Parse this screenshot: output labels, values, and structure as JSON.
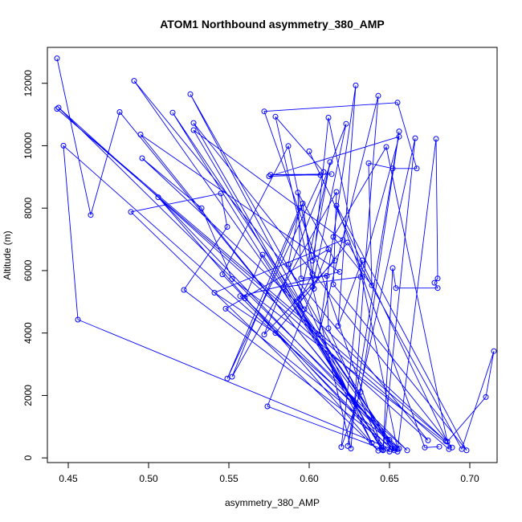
{
  "chart_data": {
    "type": "line",
    "title": "ATOM1 Northbound asymmetry_380_AMP",
    "xlabel": "asymmetry_380_AMP",
    "ylabel": "Altitude (m)",
    "xlim": [
      0.437,
      0.717
    ],
    "ylim": [
      -150,
      13150
    ],
    "xticks": [
      0.45,
      0.5,
      0.55,
      0.6,
      0.65,
      0.7
    ],
    "xtick_labels": [
      "0.45",
      "0.50",
      "0.55",
      "0.60",
      "0.65",
      "0.70"
    ],
    "yticks": [
      0,
      2000,
      4000,
      6000,
      8000,
      10000,
      12000
    ],
    "ytick_labels": [
      "0",
      "2000",
      "4000",
      "6000",
      "8000",
      "10000",
      "12000"
    ],
    "grid": false,
    "markers": "open-circle",
    "series": [
      {
        "color": "#0000ff",
        "points": [
          [
            0.443,
            12800
          ],
          [
            0.464,
            7780
          ],
          [
            0.482,
            11080
          ],
          [
            0.653,
            300
          ],
          [
            0.491,
            12080
          ],
          [
            0.674,
            560
          ],
          [
            0.444,
            11220
          ],
          [
            0.661,
            240
          ],
          [
            0.447,
            10000
          ],
          [
            0.456,
            4430
          ],
          [
            0.653,
            240
          ],
          [
            0.495,
            10360
          ],
          [
            0.619,
            5960
          ],
          [
            0.557,
            5180
          ],
          [
            0.651,
            280
          ],
          [
            0.526,
            11650
          ],
          [
            0.597,
            4760
          ],
          [
            0.515,
            11060
          ],
          [
            0.646,
            240
          ],
          [
            0.572,
            11100
          ],
          [
            0.655,
            11380
          ],
          [
            0.667,
            9270
          ],
          [
            0.652,
            9270
          ],
          [
            0.637,
            9440
          ],
          [
            0.639,
            5530
          ],
          [
            0.615,
            7080
          ],
          [
            0.648,
            9960
          ],
          [
            0.687,
            280
          ],
          [
            0.443,
            11180
          ],
          [
            0.685,
            540
          ],
          [
            0.496,
            9600
          ],
          [
            0.533,
            8000
          ],
          [
            0.552,
            5730
          ],
          [
            0.689,
            330
          ],
          [
            0.528,
            10730
          ],
          [
            0.645,
            270
          ],
          [
            0.528,
            10500
          ],
          [
            0.621,
            6980
          ],
          [
            0.541,
            5290
          ],
          [
            0.579,
            4000
          ],
          [
            0.624,
            6900
          ],
          [
            0.695,
            280
          ],
          [
            0.715,
            3420
          ],
          [
            0.71,
            1950
          ],
          [
            0.686,
            520
          ],
          [
            0.6,
            9820
          ],
          [
            0.607,
            9060
          ],
          [
            0.576,
            9070
          ],
          [
            0.614,
            9090
          ],
          [
            0.575,
            9020
          ],
          [
            0.656,
            10290
          ],
          [
            0.632,
            5800
          ],
          [
            0.584,
            5470
          ],
          [
            0.645,
            320
          ],
          [
            0.612,
            4150
          ],
          [
            0.611,
            5830
          ],
          [
            0.595,
            5750
          ],
          [
            0.593,
            8500
          ],
          [
            0.616,
            6320
          ],
          [
            0.572,
            3950
          ],
          [
            0.623,
            10700
          ],
          [
            0.602,
            5480
          ],
          [
            0.626,
            300
          ],
          [
            0.643,
            11600
          ],
          [
            0.606,
            3950
          ],
          [
            0.629,
            11930
          ],
          [
            0.618,
            4230
          ],
          [
            0.633,
            6330
          ],
          [
            0.62,
            350
          ],
          [
            0.632,
            2110
          ],
          [
            0.656,
            10460
          ],
          [
            0.624,
            380
          ],
          [
            0.666,
            10240
          ],
          [
            0.646,
            260
          ],
          [
            0.652,
            6080
          ],
          [
            0.654,
            5440
          ],
          [
            0.68,
            5440
          ],
          [
            0.678,
            5610
          ],
          [
            0.68,
            5750
          ],
          [
            0.679,
            10220
          ],
          [
            0.655,
            280
          ],
          [
            0.612,
            10900
          ],
          [
            0.602,
            5890
          ],
          [
            0.595,
            5160
          ],
          [
            0.594,
            5090
          ],
          [
            0.613,
            9480
          ],
          [
            0.602,
            6320
          ],
          [
            0.587,
            9990
          ],
          [
            0.546,
            5880
          ],
          [
            0.65,
            200
          ],
          [
            0.574,
            1650
          ],
          [
            0.612,
            6680
          ],
          [
            0.548,
            4780
          ],
          [
            0.656,
            300
          ],
          [
            0.506,
            8350
          ],
          [
            0.643,
            230
          ],
          [
            0.489,
            7880
          ],
          [
            0.545,
            8470
          ],
          [
            0.549,
            7400
          ],
          [
            0.522,
            5380
          ],
          [
            0.655,
            200
          ],
          [
            0.571,
            6510
          ],
          [
            0.56,
            5110
          ],
          [
            0.65,
            580
          ],
          [
            0.592,
            5010
          ],
          [
            0.639,
            480
          ],
          [
            0.587,
            6200
          ],
          [
            0.594,
            8000
          ],
          [
            0.549,
            2540
          ],
          [
            0.609,
            9160
          ],
          [
            0.579,
            10930
          ],
          [
            0.603,
            5420
          ],
          [
            0.596,
            8150
          ],
          [
            0.552,
            2600
          ],
          [
            0.617,
            8520
          ],
          [
            0.615,
            5560
          ],
          [
            0.698,
            240
          ],
          [
            0.617,
            8080
          ],
          [
            0.672,
            330
          ],
          [
            0.681,
            360
          ]
        ]
      }
    ]
  }
}
